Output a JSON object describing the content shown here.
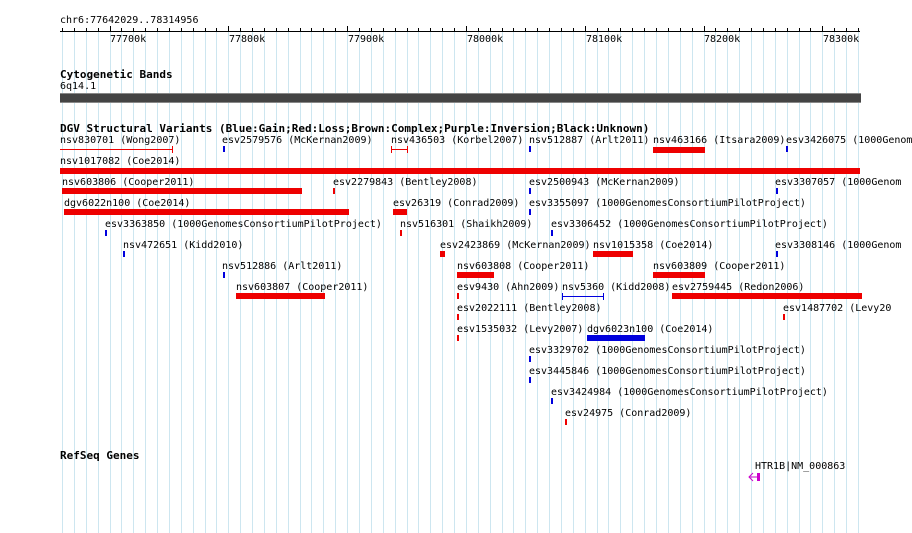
{
  "ruler": {
    "region": "chr6:77642029..78314956",
    "labels": [
      "77700k",
      "77800k",
      "77900k",
      "78000k",
      "78100k",
      "78200k",
      "78300k"
    ]
  },
  "tracks": {
    "cytoband": {
      "title": "Cytogenetic Bands",
      "band": "6q14.1"
    },
    "dgv": {
      "title": "DGV Structural Variants (Blue:Gain;Red:Loss;Brown:Complex;Purple:Inversion;Black:Unknown)",
      "features": [
        "nsv830701 (Wong2007)",
        "esv2579576 (McKernan2009)",
        "nsv436503 (Korbel2007)",
        "nsv512887 (Arlt2011)",
        "nsv463166 (Itsara2009)",
        "esv3426075 (1000Genom",
        "nsv1017082 (Coe2014)",
        "nsv603806 (Cooper2011)",
        "esv2279843 (Bentley2008)",
        "esv2500943 (McKernan2009)",
        "esv3307057 (1000Genom",
        "dgv6022n100 (Coe2014)",
        "esv26319 (Conrad2009)",
        "esv3355097 (1000GenomesConsortiumPilotProject)",
        "esv3363850 (1000GenomesConsortiumPilotProject)",
        "nsv516301 (Shaikh2009)",
        "esv3306452 (1000GenomesConsortiumPilotProject)",
        "nsv472651 (Kidd2010)",
        "esv2423869 (McKernan2009)",
        "nsv1015358 (Coe2014)",
        "esv3308146 (1000Genom",
        "nsv512886 (Arlt2011)",
        "nsv603808 (Cooper2011)",
        "nsv603809 (Cooper2011)",
        "nsv603807 (Cooper2011)",
        "esv9430 (Ahn2009)",
        "nsv5360 (Kidd2008)",
        "esv2759445 (Redon2006)",
        "esv2022111 (Bentley2008)",
        "esv1487702 (Levy20",
        "esv1535032 (Levy2007)",
        "dgv6023n100 (Coe2014)",
        "esv3329702 (1000GenomesConsortiumPilotProject)",
        "esv3445846 (1000GenomesConsortiumPilotProject)",
        "esv3424984 (1000GenomesConsortiumPilotProject)",
        "esv24975 (Conrad2009)"
      ]
    },
    "refseq": {
      "title": "RefSeq Genes",
      "gene": "HTR1B|NM_000863"
    }
  },
  "colors": {
    "gain": "#0000dd",
    "loss": "#ee0000",
    "gene": "#cc00cc",
    "grid": "#cde6f0"
  }
}
